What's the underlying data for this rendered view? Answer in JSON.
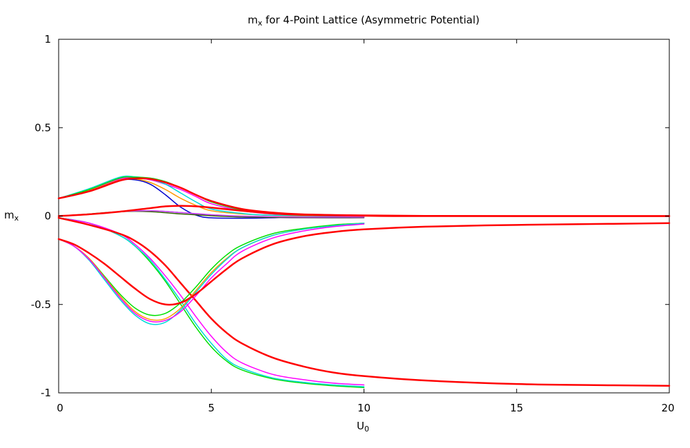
{
  "chart_data": {
    "type": "line",
    "title_main": "m",
    "title_sub": "x",
    "title_rest": " for 4-Point Lattice (Asymmetric Potential)",
    "xlabel_main": "U",
    "xlabel_sub": "0",
    "ylabel_main": "m",
    "ylabel_sub": "x",
    "xlim": [
      0,
      20
    ],
    "ylim": [
      -1,
      1
    ],
    "xticks": [
      0,
      5,
      10,
      15,
      20
    ],
    "xtick_labels": [
      "0",
      "5",
      "10",
      "15",
      "20"
    ],
    "yticks": [
      1,
      0.5,
      0,
      -0.5,
      -1
    ],
    "ytick_labels": [
      "1",
      "0.5",
      "0",
      "-0.5",
      "-1"
    ],
    "grid": false,
    "colors": {
      "red": "#ff0000",
      "green": "#00e000",
      "cyan": "#00d8d8",
      "magenta": "#ff00ff",
      "orange": "#ff9900",
      "blue": "#0000cc",
      "purple": "#9933cc",
      "darkgreen": "#336600",
      "violet": "#cc44ff"
    },
    "series": [
      {
        "color": "blue",
        "width": 1.5,
        "points": [
          [
            0,
            0.1
          ],
          [
            1,
            0.145
          ],
          [
            2,
            0.2
          ],
          [
            2.5,
            0.205
          ],
          [
            3,
            0.18
          ],
          [
            3.5,
            0.12
          ],
          [
            4,
            0.05
          ],
          [
            4.5,
            0.005
          ],
          [
            5,
            -0.01
          ],
          [
            6,
            -0.012
          ],
          [
            7,
            -0.01
          ],
          [
            8,
            -0.006
          ],
          [
            10,
            -0.003
          ]
        ]
      },
      {
        "color": "orange",
        "width": 1.5,
        "points": [
          [
            0,
            0.1
          ],
          [
            1,
            0.145
          ],
          [
            2,
            0.205
          ],
          [
            2.5,
            0.21
          ],
          [
            3,
            0.19
          ],
          [
            3.5,
            0.15
          ],
          [
            4,
            0.1
          ],
          [
            4.5,
            0.06
          ],
          [
            5,
            0.03
          ],
          [
            6,
            0.012
          ],
          [
            7,
            0.004
          ],
          [
            8,
            0.001
          ],
          [
            10,
            0.0
          ]
        ]
      },
      {
        "color": "magenta",
        "width": 1.5,
        "points": [
          [
            0,
            0.1
          ],
          [
            1,
            0.15
          ],
          [
            2,
            0.21
          ],
          [
            2.5,
            0.215
          ],
          [
            3,
            0.205
          ],
          [
            3.5,
            0.18
          ],
          [
            4,
            0.15
          ],
          [
            4.5,
            0.11
          ],
          [
            5,
            0.07
          ],
          [
            6,
            0.03
          ],
          [
            7,
            0.012
          ],
          [
            8,
            0.005
          ],
          [
            10,
            0.0
          ]
        ]
      },
      {
        "color": "cyan",
        "width": 1.5,
        "points": [
          [
            0,
            0.1
          ],
          [
            1,
            0.155
          ],
          [
            2,
            0.22
          ],
          [
            2.5,
            0.222
          ],
          [
            3,
            0.21
          ],
          [
            3.5,
            0.18
          ],
          [
            4,
            0.13
          ],
          [
            4.5,
            0.08
          ],
          [
            5,
            0.04
          ],
          [
            6,
            0.015
          ],
          [
            7,
            0.005
          ],
          [
            10,
            0.0
          ]
        ]
      },
      {
        "color": "green",
        "width": 1.5,
        "points": [
          [
            0,
            0.1
          ],
          [
            1,
            0.15
          ],
          [
            2,
            0.215
          ],
          [
            2.5,
            0.22
          ],
          [
            3,
            0.215
          ],
          [
            3.5,
            0.195
          ],
          [
            4,
            0.16
          ],
          [
            4.5,
            0.12
          ],
          [
            5,
            0.08
          ],
          [
            6,
            0.035
          ],
          [
            7,
            0.015
          ],
          [
            8,
            0.006
          ],
          [
            10,
            0.0
          ]
        ]
      },
      {
        "color": "red",
        "width": 2.5,
        "points": [
          [
            0,
            0.1
          ],
          [
            1,
            0.14
          ],
          [
            2,
            0.2
          ],
          [
            2.5,
            0.213
          ],
          [
            3,
            0.21
          ],
          [
            3.5,
            0.19
          ],
          [
            4,
            0.16
          ],
          [
            4.5,
            0.12
          ],
          [
            5,
            0.085
          ],
          [
            6,
            0.04
          ],
          [
            7,
            0.02
          ],
          [
            8,
            0.01
          ],
          [
            10,
            0.004
          ],
          [
            12,
            0.001
          ],
          [
            15,
            0.0
          ],
          [
            20,
            0.0
          ]
        ]
      },
      {
        "color": "purple",
        "width": 1.5,
        "points": [
          [
            0,
            0.0
          ],
          [
            1,
            0.01
          ],
          [
            2,
            0.025
          ],
          [
            3,
            0.03
          ],
          [
            4,
            0.02
          ],
          [
            5,
            0.005
          ],
          [
            6,
            -0.005
          ],
          [
            7,
            -0.008
          ],
          [
            8,
            -0.01
          ],
          [
            10,
            -0.01
          ]
        ]
      },
      {
        "color": "darkgreen",
        "width": 1.5,
        "points": [
          [
            0,
            0.0
          ],
          [
            1,
            0.012
          ],
          [
            2,
            0.025
          ],
          [
            3,
            0.025
          ],
          [
            4,
            0.012
          ],
          [
            5,
            0.002
          ],
          [
            6,
            -0.005
          ],
          [
            8,
            -0.008
          ],
          [
            10,
            -0.008
          ]
        ]
      },
      {
        "color": "violet",
        "width": 1.5,
        "points": [
          [
            0,
            0.0
          ],
          [
            1,
            0.01
          ],
          [
            2,
            0.025
          ],
          [
            3,
            0.03
          ],
          [
            4,
            0.02
          ],
          [
            5,
            0.008
          ],
          [
            6,
            0.0
          ],
          [
            8,
            -0.005
          ],
          [
            10,
            -0.005
          ]
        ]
      },
      {
        "color": "red",
        "width": 2.5,
        "points": [
          [
            0,
            0.0
          ],
          [
            1,
            0.01
          ],
          [
            2,
            0.025
          ],
          [
            3,
            0.045
          ],
          [
            3.5,
            0.055
          ],
          [
            4,
            0.058
          ],
          [
            4.5,
            0.055
          ],
          [
            5,
            0.048
          ],
          [
            6,
            0.03
          ],
          [
            7,
            0.015
          ],
          [
            8,
            0.007
          ],
          [
            10,
            0.002
          ],
          [
            12,
            0.0
          ],
          [
            20,
            0.0
          ]
        ]
      },
      {
        "color": "green",
        "width": 1.5,
        "points": [
          [
            0,
            -0.01
          ],
          [
            1,
            -0.04
          ],
          [
            2,
            -0.11
          ],
          [
            2.5,
            -0.17
          ],
          [
            3,
            -0.26
          ],
          [
            3.5,
            -0.37
          ],
          [
            4,
            -0.5
          ],
          [
            4.5,
            -0.63
          ],
          [
            5,
            -0.74
          ],
          [
            5.5,
            -0.82
          ],
          [
            6,
            -0.87
          ],
          [
            7,
            -0.92
          ],
          [
            8,
            -0.945
          ],
          [
            9,
            -0.96
          ],
          [
            10,
            -0.97
          ]
        ]
      },
      {
        "color": "cyan",
        "width": 1.5,
        "points": [
          [
            0,
            -0.01
          ],
          [
            1,
            -0.04
          ],
          [
            2,
            -0.11
          ],
          [
            2.5,
            -0.17
          ],
          [
            3,
            -0.25
          ],
          [
            3.5,
            -0.36
          ],
          [
            4,
            -0.48
          ],
          [
            4.5,
            -0.61
          ],
          [
            5,
            -0.72
          ],
          [
            5.5,
            -0.81
          ],
          [
            6,
            -0.86
          ],
          [
            7,
            -0.915
          ],
          [
            8,
            -0.94
          ],
          [
            9,
            -0.955
          ],
          [
            10,
            -0.965
          ]
        ]
      },
      {
        "color": "magenta",
        "width": 1.5,
        "points": [
          [
            0,
            -0.01
          ],
          [
            1,
            -0.04
          ],
          [
            2,
            -0.1
          ],
          [
            2.5,
            -0.16
          ],
          [
            3,
            -0.24
          ],
          [
            3.5,
            -0.34
          ],
          [
            4,
            -0.45
          ],
          [
            4.5,
            -0.57
          ],
          [
            5,
            -0.68
          ],
          [
            5.5,
            -0.77
          ],
          [
            6,
            -0.83
          ],
          [
            7,
            -0.895
          ],
          [
            8,
            -0.925
          ],
          [
            9,
            -0.945
          ],
          [
            10,
            -0.955
          ]
        ]
      },
      {
        "color": "red",
        "width": 2.5,
        "points": [
          [
            0,
            -0.01
          ],
          [
            1,
            -0.05
          ],
          [
            2,
            -0.1
          ],
          [
            2.5,
            -0.14
          ],
          [
            3,
            -0.2
          ],
          [
            3.5,
            -0.28
          ],
          [
            4,
            -0.38
          ],
          [
            4.5,
            -0.48
          ],
          [
            5,
            -0.58
          ],
          [
            5.5,
            -0.66
          ],
          [
            6,
            -0.72
          ],
          [
            7,
            -0.8
          ],
          [
            8,
            -0.85
          ],
          [
            9,
            -0.885
          ],
          [
            10,
            -0.905
          ],
          [
            12,
            -0.93
          ],
          [
            15,
            -0.95
          ],
          [
            18,
            -0.957
          ],
          [
            20,
            -0.96
          ]
        ]
      },
      {
        "color": "green",
        "width": 1.5,
        "points": [
          [
            0,
            -0.13
          ],
          [
            0.5,
            -0.17
          ],
          [
            1,
            -0.24
          ],
          [
            1.5,
            -0.34
          ],
          [
            2,
            -0.44
          ],
          [
            2.5,
            -0.52
          ],
          [
            3,
            -0.56
          ],
          [
            3.5,
            -0.55
          ],
          [
            4,
            -0.49
          ],
          [
            4.5,
            -0.4
          ],
          [
            5,
            -0.3
          ],
          [
            5.5,
            -0.22
          ],
          [
            6,
            -0.165
          ],
          [
            7,
            -0.1
          ],
          [
            8,
            -0.07
          ],
          [
            9,
            -0.05
          ],
          [
            10,
            -0.04
          ]
        ]
      },
      {
        "color": "orange",
        "width": 1.5,
        "points": [
          [
            0,
            -0.13
          ],
          [
            0.5,
            -0.17
          ],
          [
            1,
            -0.24
          ],
          [
            1.5,
            -0.345
          ],
          [
            2,
            -0.45
          ],
          [
            2.5,
            -0.54
          ],
          [
            3,
            -0.585
          ],
          [
            3.5,
            -0.58
          ],
          [
            4,
            -0.52
          ],
          [
            4.5,
            -0.42
          ],
          [
            5,
            -0.32
          ],
          [
            5.5,
            -0.24
          ],
          [
            6,
            -0.18
          ],
          [
            7,
            -0.11
          ],
          [
            8,
            -0.075
          ],
          [
            9,
            -0.055
          ],
          [
            10,
            -0.04
          ]
        ]
      },
      {
        "color": "cyan",
        "width": 1.5,
        "points": [
          [
            0,
            -0.13
          ],
          [
            0.5,
            -0.17
          ],
          [
            1,
            -0.25
          ],
          [
            1.5,
            -0.36
          ],
          [
            2,
            -0.47
          ],
          [
            2.5,
            -0.56
          ],
          [
            3,
            -0.61
          ],
          [
            3.5,
            -0.6
          ],
          [
            4,
            -0.53
          ],
          [
            4.5,
            -0.43
          ],
          [
            5,
            -0.33
          ],
          [
            5.5,
            -0.245
          ],
          [
            6,
            -0.18
          ],
          [
            7,
            -0.11
          ],
          [
            8,
            -0.075
          ],
          [
            9,
            -0.055
          ],
          [
            10,
            -0.04
          ]
        ]
      },
      {
        "color": "magenta",
        "width": 1.5,
        "points": [
          [
            0,
            -0.13
          ],
          [
            0.5,
            -0.17
          ],
          [
            1,
            -0.245
          ],
          [
            1.5,
            -0.35
          ],
          [
            2,
            -0.46
          ],
          [
            2.5,
            -0.55
          ],
          [
            3,
            -0.595
          ],
          [
            3.5,
            -0.59
          ],
          [
            4,
            -0.54
          ],
          [
            4.5,
            -0.45
          ],
          [
            5,
            -0.35
          ],
          [
            5.5,
            -0.27
          ],
          [
            6,
            -0.2
          ],
          [
            7,
            -0.125
          ],
          [
            8,
            -0.085
          ],
          [
            9,
            -0.06
          ],
          [
            10,
            -0.045
          ]
        ]
      },
      {
        "color": "red",
        "width": 2.5,
        "points": [
          [
            0,
            -0.13
          ],
          [
            0.5,
            -0.16
          ],
          [
            1,
            -0.21
          ],
          [
            1.5,
            -0.27
          ],
          [
            2,
            -0.34
          ],
          [
            2.5,
            -0.41
          ],
          [
            3,
            -0.47
          ],
          [
            3.5,
            -0.5
          ],
          [
            4,
            -0.49
          ],
          [
            4.5,
            -0.44
          ],
          [
            5,
            -0.37
          ],
          [
            5.5,
            -0.3
          ],
          [
            6,
            -0.24
          ],
          [
            7,
            -0.16
          ],
          [
            8,
            -0.115
          ],
          [
            9,
            -0.09
          ],
          [
            10,
            -0.075
          ],
          [
            12,
            -0.06
          ],
          [
            15,
            -0.05
          ],
          [
            18,
            -0.044
          ],
          [
            20,
            -0.04
          ]
        ]
      }
    ]
  }
}
